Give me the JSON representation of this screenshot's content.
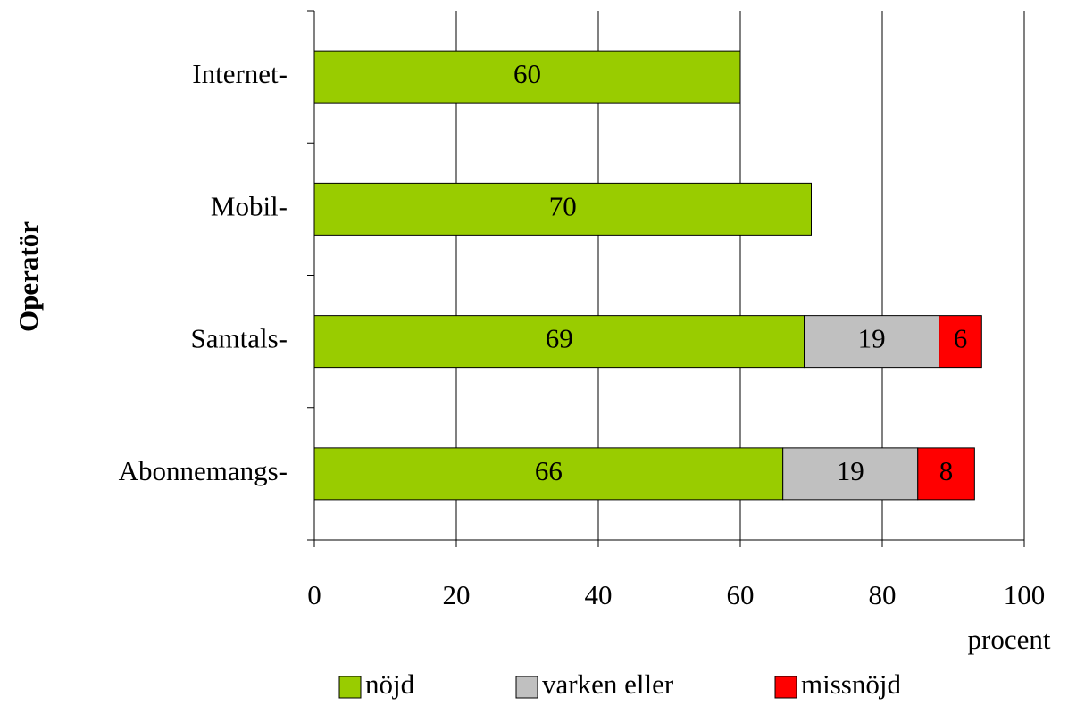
{
  "chart_data": {
    "type": "stacked_barh",
    "y_label": "Operatör",
    "x_label": "procent",
    "categories": [
      "Internet-",
      "Mobil-",
      "Samtals-",
      "Abonnemangs-"
    ],
    "series": [
      {
        "name": "nöjd",
        "color": "#99cc00",
        "values": [
          60,
          70,
          69,
          66
        ]
      },
      {
        "name": "varken eller",
        "color": "#c0c0c0",
        "values": [
          null,
          null,
          19,
          19
        ]
      },
      {
        "name": "missnöjd",
        "color": "#ff0000",
        "values": [
          null,
          null,
          6,
          8
        ]
      }
    ],
    "xlim": [
      0,
      100
    ],
    "xticks": [
      0,
      20,
      40,
      60,
      80,
      100
    ],
    "grid": true,
    "legend": "bottom"
  }
}
